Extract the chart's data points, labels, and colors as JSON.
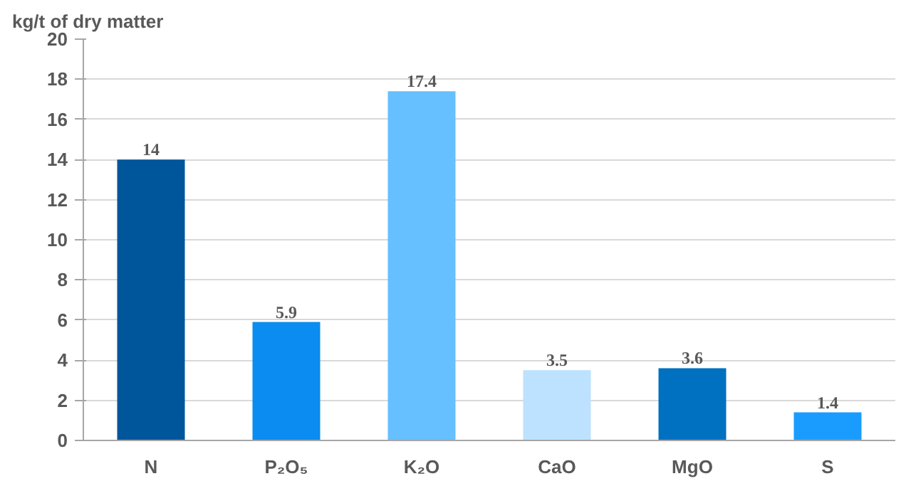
{
  "chart_data": {
    "type": "bar",
    "ylabel": "kg/t of dry matter",
    "categories": [
      "N",
      "P₂O₅",
      "K₂O",
      "CaO",
      "MgO",
      "S"
    ],
    "values": [
      14,
      5.9,
      17.4,
      3.5,
      3.6,
      1.4
    ],
    "colors": [
      "#00569a",
      "#0a8cf0",
      "#66bfff",
      "#bde2ff",
      "#0070c0",
      "#1a9cff"
    ],
    "ylim": [
      0,
      20
    ],
    "yticks": [
      0,
      2,
      4,
      6,
      8,
      10,
      12,
      14,
      16,
      18,
      20
    ],
    "grid": "y",
    "data_labels": true
  }
}
